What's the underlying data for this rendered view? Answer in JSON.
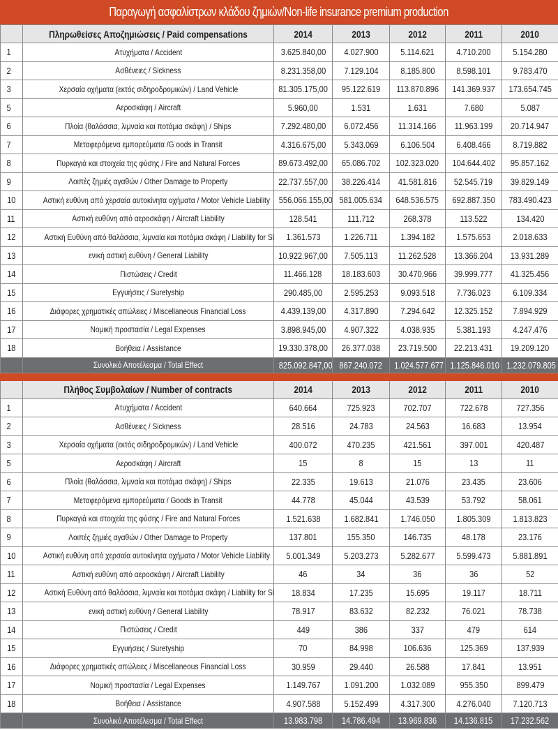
{
  "title": "Παραγωγή ασφαλίστρων κλάδου ζημιών/Non-life insurance premium production",
  "colors": {
    "accent": "#cf4a25",
    "header_bg": "#e6e6e7",
    "total_bg": "#6d6e71"
  },
  "tables": [
    {
      "header": "Πληρωθείσες Αποζημιώσεις / Paid compensations",
      "years": [
        "2014",
        "2013",
        "2012",
        "2011",
        "2010"
      ],
      "rows": [
        {
          "idx": "1",
          "label": "Ατυχήματα / Accident",
          "values": [
            "3.625.840,00",
            "4.027.900",
            "5.114.621",
            "4.710.200",
            "5.154.280"
          ]
        },
        {
          "idx": "2",
          "label": "Ασθένειες / Sickness",
          "values": [
            "8.231.358,00",
            "7.129.104",
            "8.185.800",
            "8.598.101",
            "9.783.470"
          ]
        },
        {
          "idx": "3",
          "label": "Χερσαία οχήματα (εκτός σιδηροδρομικών) / Land Vehicle",
          "values": [
            "81.305.175,00",
            "95.122.619",
            "113.870.896",
            "141.369.937",
            "173.654.745"
          ]
        },
        {
          "idx": "5",
          "label": "Αεροσκάφη / Aircraft",
          "values": [
            "5.960,00",
            "1.531",
            "1.631",
            "7.680",
            "5.087"
          ]
        },
        {
          "idx": "6",
          "label": "Πλοία (θαλάσσια, λιμναία και ποτάμια σκάφη) / Ships",
          "values": [
            "7.292.480,00",
            "6.072.456",
            "11.314.166",
            "11.963.199",
            "20.714.947"
          ]
        },
        {
          "idx": "7",
          "label": "Μεταφερόμενα εμπορεύματα /G oods in Transit",
          "values": [
            "4.316.675,00",
            "5.343.069",
            "6.106.504",
            "6.408.466",
            "8.719.882"
          ]
        },
        {
          "idx": "8",
          "label": "Πυρκαγιά και στοιχεία της φύσης / Fire and Natural Forces",
          "values": [
            "89.673.492,00",
            "65.086.702",
            "102.323.020",
            "104.644.402",
            "95.857.162"
          ]
        },
        {
          "idx": "9",
          "label": "Λοιπές ζημιές αγαθών / Other Damage to Property",
          "values": [
            "22.737.557,00",
            "38.226.414",
            "41.581.816",
            "52.545.719",
            "39.829.149"
          ]
        },
        {
          "idx": "10",
          "label": "Αστική ευθύνη από χερσαία αυτοκίνητα οχήματα / Motor Vehicle Liability",
          "values": [
            "556.066.155,00",
            "581.005.634",
            "648.536.575",
            "692.887.350",
            "783.490.423"
          ]
        },
        {
          "idx": "11",
          "label": "Αστική ευθύνη από αεροσκάφη / Aircraft Liability",
          "values": [
            "128.541",
            "111.712",
            "268.378",
            "113.522",
            "134.420"
          ]
        },
        {
          "idx": "12",
          "label": "Αστική Ευθύνη από θαλάσσια, λιμναία και ποτάμια σκάφη / Liability for Ships",
          "values": [
            "1.361.573",
            "1.226.711",
            "1.394.182",
            "1.575.653",
            "2.018.633"
          ]
        },
        {
          "idx": "13",
          "label": "ενική αστική ευθύνη / General Liability",
          "values": [
            "10.922.967,00",
            "7.505.113",
            "11.262.528",
            "13.366.204",
            "13.931.289"
          ]
        },
        {
          "idx": "14",
          "label": "Πιστώσεις / Credit",
          "values": [
            "11.466.128",
            "18.183.603",
            "30.470.966",
            "39.999.777",
            "41.325.456"
          ]
        },
        {
          "idx": "15",
          "label": "Εγγυήσεις / Suretyship",
          "values": [
            "290.485,00",
            "2.595.253",
            "9.093.518",
            "7.736.023",
            "6.109.334"
          ]
        },
        {
          "idx": "16",
          "label": "Διάφορες χρηματικές απώλειες / Miscellaneous Financial Loss",
          "values": [
            "4.439.139,00",
            "4.317.890",
            "7.294.642",
            "12.325.152",
            "7.894.929"
          ]
        },
        {
          "idx": "17",
          "label": "Νομική προστασία / Legal Expenses",
          "values": [
            "3.898.945,00",
            "4.907.322",
            "4.038.935",
            "5.381.193",
            "4.247.476"
          ]
        },
        {
          "idx": "18",
          "label": "Βοήθεια / Assistance",
          "values": [
            "19.330.378,00",
            "26.377.038",
            "23.719.500",
            "22.213.431",
            "19.209.120"
          ]
        }
      ],
      "total": {
        "label": "Συνολικό Αποτέλεσμα / Total Effect",
        "values": [
          "825.092.847,00",
          "867.240.072",
          "1.024.577.677",
          "1.125.846.010",
          "1.232.079.805"
        ]
      }
    },
    {
      "header": "Πλήθος Συμβολαίων / Number of contracts",
      "years": [
        "2014",
        "2013",
        "2012",
        "2011",
        "2010"
      ],
      "rows": [
        {
          "idx": "1",
          "label": "Ατυχήματα / Accident",
          "values": [
            "640.664",
            "725.923",
            "702.707",
            "722.678",
            "727.356"
          ]
        },
        {
          "idx": "2",
          "label": "Ασθένειες / Sickness",
          "values": [
            "28.516",
            "24.783",
            "24.563",
            "16.683",
            "13.954"
          ]
        },
        {
          "idx": "3",
          "label": "Χερσαία οχήματα (εκτός σιδηροδρομικών) / Land Vehicle",
          "values": [
            "400.072",
            "470.235",
            "421.561",
            "397.001",
            "420.487"
          ]
        },
        {
          "idx": "5",
          "label": "Αεροσκάφη / Aircraft",
          "values": [
            "15",
            "8",
            "15",
            "13",
            "11"
          ]
        },
        {
          "idx": "6",
          "label": "Πλοία (θαλάσσια, λιμναία και ποτάμια σκάφη) / Ships",
          "values": [
            "22.335",
            "19.613",
            "21.076",
            "23.435",
            "23.606"
          ]
        },
        {
          "idx": "7",
          "label": "Μεταφερόμενα εμπορεύματα / Goods in Transit",
          "values": [
            "44.778",
            "45.044",
            "43.539",
            "53.792",
            "58.061"
          ]
        },
        {
          "idx": "8",
          "label": "Πυρκαγιά και στοιχεία της φύσης / Fire and Natural Forces",
          "values": [
            "1.521.638",
            "1.682.841",
            "1.746.050",
            "1.805.309",
            "1.813.823"
          ]
        },
        {
          "idx": "9",
          "label": "Λοιπές ζημιές αγαθών / Other Damage to Property",
          "values": [
            "137.801",
            "155.350",
            "146.735",
            "48.178",
            "23.176"
          ]
        },
        {
          "idx": "10",
          "label": "Αστική ευθύνη από χερσαία αυτοκίνητα οχήματα / Motor Vehicle Liability",
          "values": [
            "5.001.349",
            "5.203.273",
            "5.282.677",
            "5.599.473",
            "5.881.891"
          ]
        },
        {
          "idx": "11",
          "label": "Αστική ευθύνη από αεροσκάφη / Aircraft Liability",
          "values": [
            "46",
            "34",
            "36",
            "36",
            "52"
          ]
        },
        {
          "idx": "12",
          "label": "Αστική Ευθύνη από θαλάσσια, λιμναία και ποτάμια σκάφη / Liability for Ships",
          "values": [
            "18.834",
            "17.235",
            "15.695",
            "19.117",
            "18.711"
          ]
        },
        {
          "idx": "13",
          "label": "ενική αστική ευθύνη / General Liability",
          "values": [
            "78.917",
            "83.632",
            "82.232",
            "76.021",
            "78.738"
          ]
        },
        {
          "idx": "14",
          "label": "Πιστώσεις / Credit",
          "values": [
            "449",
            "386",
            "337",
            "479",
            "614"
          ]
        },
        {
          "idx": "15",
          "label": "Εγγυήσεις / Suretyship",
          "values": [
            "70",
            "84.998",
            "106.636",
            "125.369",
            "137.939"
          ]
        },
        {
          "idx": "16",
          "label": "Διάφορες χρηματικές απώλειες / Miscellaneous Financial Loss",
          "values": [
            "30.959",
            "29.440",
            "26.588",
            "17.841",
            "13.951"
          ]
        },
        {
          "idx": "17",
          "label": "Νομική προστασία / Legal Expenses",
          "values": [
            "1.149.767",
            "1.091.200",
            "1.032.089",
            "955.350",
            "899.479"
          ]
        },
        {
          "idx": "18",
          "label": "Βοήθεια / Assistance",
          "values": [
            "4.907.588",
            "5.152.499",
            "4.317.300",
            "4.276.040",
            "7.120.713"
          ]
        }
      ],
      "total": {
        "label": "Συνολικό Αποτέλεσμα / Total Effect",
        "values": [
          "13.983.798",
          "14.786.494",
          "13.969.836",
          "14.136.815",
          "17.232.562"
        ]
      }
    }
  ]
}
